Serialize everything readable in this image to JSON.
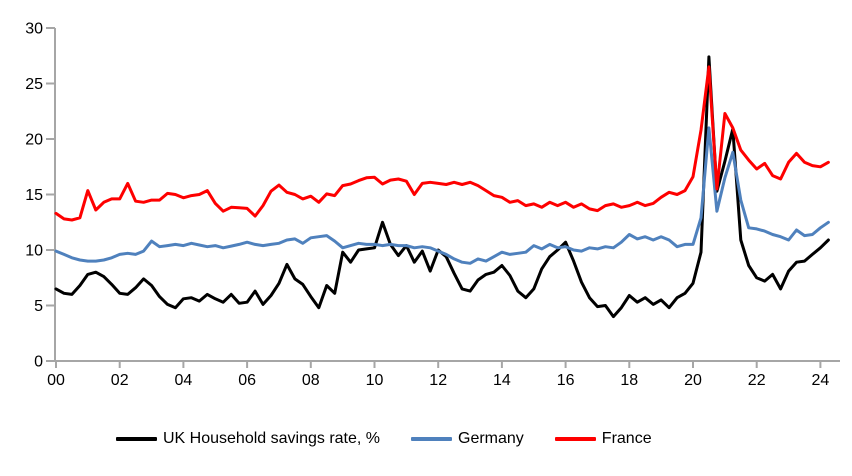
{
  "chart_data": {
    "type": "line",
    "title": "",
    "frequency": "quarterly",
    "start_year": 2000,
    "grid": false,
    "legend_position": "bottom",
    "x_axis": {
      "tick_labels": [
        "00",
        "02",
        "04",
        "06",
        "08",
        "10",
        "12",
        "14",
        "16",
        "18",
        "20",
        "22",
        "24"
      ],
      "years_per_tick": 2
    },
    "y_axis": {
      "ticks": [
        0,
        5,
        10,
        15,
        20,
        25,
        30
      ],
      "range": [
        0,
        30
      ]
    },
    "series": [
      {
        "name": "UK Household savings rate, %",
        "color": "#000000",
        "values": [
          6.5,
          6.1,
          6.0,
          6.8,
          7.8,
          8.0,
          7.6,
          6.9,
          6.1,
          6.0,
          6.6,
          7.4,
          6.8,
          5.8,
          5.1,
          4.8,
          5.6,
          5.7,
          5.4,
          6.0,
          5.6,
          5.3,
          6.0,
          5.2,
          5.3,
          6.3,
          5.1,
          5.9,
          7.0,
          8.7,
          7.4,
          6.9,
          5.8,
          4.8,
          6.8,
          6.1,
          9.8,
          8.9,
          10.0,
          10.1,
          10.2,
          12.5,
          10.5,
          9.5,
          10.4,
          8.9,
          9.9,
          8.1,
          10.0,
          9.4,
          7.9,
          6.5,
          6.3,
          7.3,
          7.8,
          8.0,
          8.6,
          7.7,
          6.3,
          5.7,
          6.5,
          8.3,
          9.4,
          10.0,
          10.7,
          9.0,
          7.1,
          5.7,
          4.9,
          5.0,
          4.0,
          4.8,
          5.9,
          5.3,
          5.7,
          5.1,
          5.5,
          4.8,
          5.7,
          6.1,
          7.0,
          9.8,
          27.4,
          15.3,
          18.0,
          20.9,
          10.9,
          8.6,
          7.5,
          7.2,
          7.8,
          6.5,
          8.1,
          8.9,
          9.0,
          9.6,
          10.2,
          10.9
        ]
      },
      {
        "name": "Germany",
        "color": "#4f81bd",
        "values": [
          9.9,
          9.6,
          9.3,
          9.1,
          9.0,
          9.0,
          9.1,
          9.3,
          9.6,
          9.7,
          9.6,
          9.9,
          10.8,
          10.3,
          10.4,
          10.5,
          10.4,
          10.6,
          10.45,
          10.3,
          10.4,
          10.2,
          10.35,
          10.5,
          10.7,
          10.5,
          10.4,
          10.5,
          10.6,
          10.9,
          11.0,
          10.6,
          11.1,
          11.2,
          11.3,
          10.8,
          10.2,
          10.4,
          10.6,
          10.5,
          10.5,
          10.4,
          10.5,
          10.4,
          10.4,
          10.2,
          10.3,
          10.2,
          9.9,
          9.6,
          9.2,
          8.9,
          8.8,
          9.2,
          9.0,
          9.4,
          9.8,
          9.6,
          9.7,
          9.8,
          10.4,
          10.1,
          10.5,
          10.2,
          10.3,
          10.0,
          9.9,
          10.2,
          10.1,
          10.3,
          10.2,
          10.7,
          11.4,
          11.0,
          11.2,
          10.9,
          11.2,
          10.9,
          10.3,
          10.5,
          10.5,
          12.9,
          21.0,
          13.5,
          16.5,
          18.8,
          14.5,
          12.0,
          11.9,
          11.7,
          11.4,
          11.2,
          10.9,
          11.8,
          11.3,
          11.4,
          12.0,
          12.5
        ]
      },
      {
        "name": "France",
        "color": "#fe0000",
        "values": [
          13.3,
          12.8,
          12.7,
          12.9,
          15.35,
          13.6,
          14.3,
          14.6,
          14.6,
          16.0,
          14.4,
          14.3,
          14.5,
          14.5,
          15.1,
          15.0,
          14.7,
          14.9,
          15.0,
          15.35,
          14.2,
          13.5,
          13.85,
          13.8,
          13.75,
          13.05,
          14.0,
          15.3,
          15.85,
          15.2,
          15.0,
          14.6,
          14.85,
          14.3,
          15.05,
          14.9,
          15.8,
          15.95,
          16.25,
          16.5,
          16.55,
          15.95,
          16.3,
          16.4,
          16.2,
          15.0,
          16.0,
          16.1,
          16.0,
          15.9,
          16.1,
          15.9,
          16.1,
          15.8,
          15.35,
          14.9,
          14.75,
          14.3,
          14.45,
          14.0,
          14.15,
          13.85,
          14.3,
          14.0,
          14.3,
          13.85,
          14.15,
          13.7,
          13.55,
          14.0,
          14.15,
          13.85,
          14.0,
          14.3,
          14.0,
          14.2,
          14.75,
          15.2,
          15.0,
          15.35,
          16.6,
          20.8,
          26.5,
          15.5,
          22.3,
          21.0,
          19.0,
          18.1,
          17.3,
          17.8,
          16.7,
          16.4,
          17.9,
          18.7,
          17.9,
          17.6,
          17.5,
          17.9
        ]
      }
    ]
  },
  "legend": {
    "items": [
      {
        "label": "UK Household savings rate, %"
      },
      {
        "label": "Germany"
      },
      {
        "label": "France"
      }
    ]
  },
  "style": {
    "axis_color": "#a6a6a6",
    "tick_label_color": "#000000",
    "background": "#ffffff"
  }
}
